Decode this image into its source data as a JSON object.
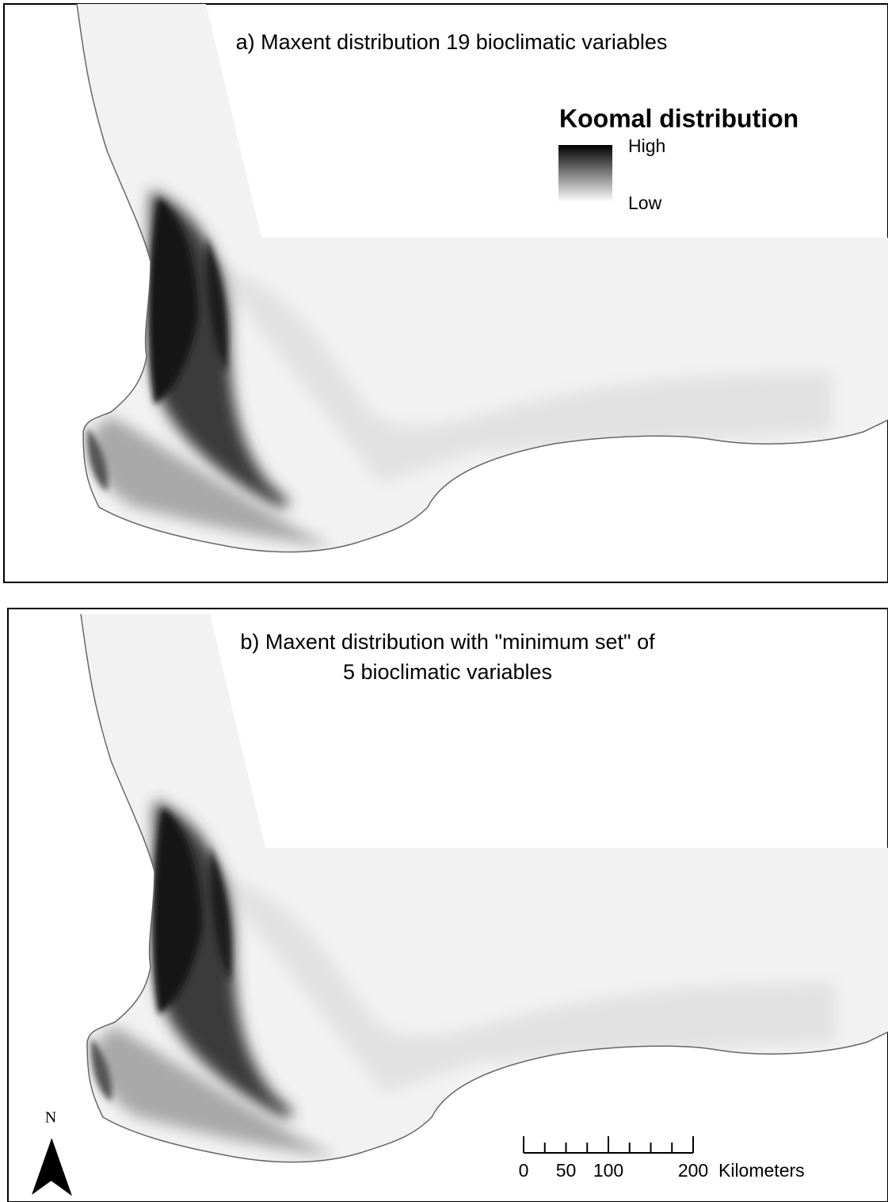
{
  "panels": [
    {
      "title_lines": [
        "a) Maxent distribution 19 bioclimatic variables"
      ]
    },
    {
      "title_lines": [
        "b) Maxent distribution with \"minimum set\" of",
        "5 bioclimatic variables"
      ]
    }
  ],
  "legend": {
    "title": "Koomal distribution",
    "high": "High",
    "low": "Low"
  },
  "north_arrow": {
    "label": "N"
  },
  "scale_bar": {
    "labels": [
      0,
      50,
      100,
      200
    ],
    "unit": "Kilometers"
  }
}
